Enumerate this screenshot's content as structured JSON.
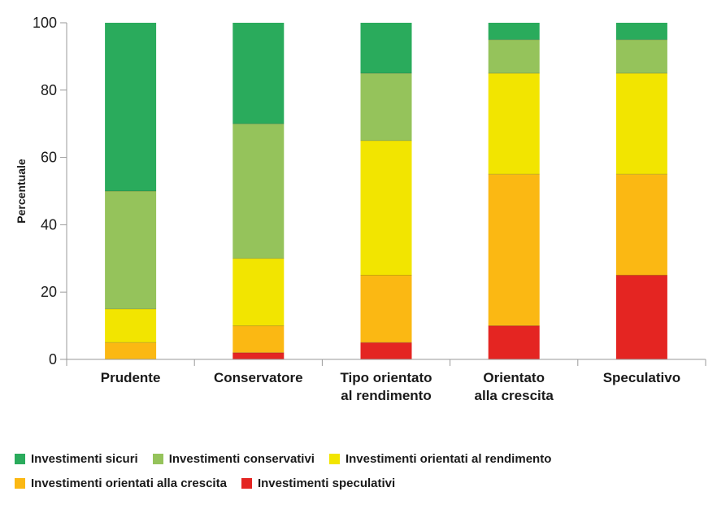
{
  "chart_data": {
    "type": "bar",
    "stacked": true,
    "categories": [
      [
        "Prudente"
      ],
      [
        "Conservatore"
      ],
      [
        "Tipo orientato",
        "al rendimento"
      ],
      [
        "Orientato",
        "alla crescita"
      ],
      [
        "Speculativo"
      ]
    ],
    "series": [
      {
        "name": "Investimenti speculativi",
        "color": "#e42522",
        "values": [
          0,
          2,
          5,
          10,
          25
        ]
      },
      {
        "name": "Investimenti orientati alla crescita",
        "color": "#fbb813",
        "values": [
          5,
          8,
          20,
          45,
          30
        ]
      },
      {
        "name": "Investimenti orientati al rendimento",
        "color": "#f2e500",
        "values": [
          10,
          20,
          40,
          30,
          30
        ]
      },
      {
        "name": "Investimenti conservativi",
        "color": "#95c35b",
        "values": [
          35,
          40,
          20,
          10,
          10
        ]
      },
      {
        "name": "Investimenti sicuri",
        "color": "#2aab5c",
        "values": [
          50,
          30,
          15,
          5,
          5
        ]
      }
    ],
    "ylabel": "Percentuale",
    "ylim": [
      0,
      100
    ],
    "yticks": [
      0,
      20,
      40,
      60,
      80,
      100
    ],
    "title": "",
    "xlabel": ""
  },
  "legend": {
    "rows": [
      [
        "Investimenti sicuri",
        "Investimenti conservativi",
        "Investimenti orientati al rendimento"
      ],
      [
        "Investimenti orientati alla crescita",
        "Investimenti speculativi"
      ]
    ]
  }
}
